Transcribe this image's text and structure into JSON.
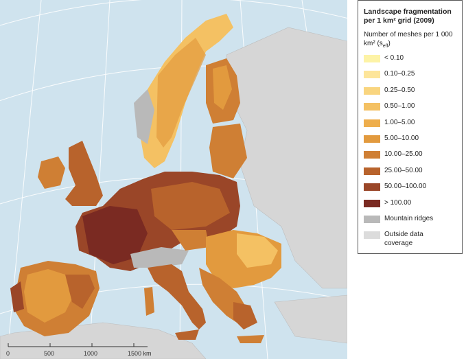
{
  "legend": {
    "title": "Landscape fragmentation per 1 km² grid (2009)",
    "subtitle": "Number of meshes per 1 000 km² (s",
    "subtitle_sub": "eff",
    "subtitle_end": ")",
    "classes": [
      {
        "label": "< 0.10",
        "color": "#fdf3a6"
      },
      {
        "label": "0.10–0.25",
        "color": "#fde59a"
      },
      {
        "label": "0.25–0.50",
        "color": "#f9d57f"
      },
      {
        "label": "0.50–1.00",
        "color": "#f4c163"
      },
      {
        "label": "1.00–5.00",
        "color": "#eeae4c"
      },
      {
        "label": "5.00–10.00",
        "color": "#e29a3e"
      },
      {
        "label": "10.00–25.00",
        "color": "#cf7f34"
      },
      {
        "label": "25.00–50.00",
        "color": "#b8632c"
      },
      {
        "label": "50.00–100.00",
        "color": "#9a4628"
      },
      {
        "label": "> 100.00",
        "color": "#7a2a22"
      },
      {
        "label": "Mountain ridges",
        "color": "#b9b9b9"
      },
      {
        "label": "Outside data\ncoverage",
        "color": "#dcdcdc"
      }
    ]
  },
  "scale_bar": {
    "ticks": [
      "0",
      "500",
      "1000",
      "1500 km"
    ]
  },
  "colors": {
    "sea": "#cfe3ee",
    "outside": "#d6d6d6",
    "graticule": "#ffffff"
  }
}
